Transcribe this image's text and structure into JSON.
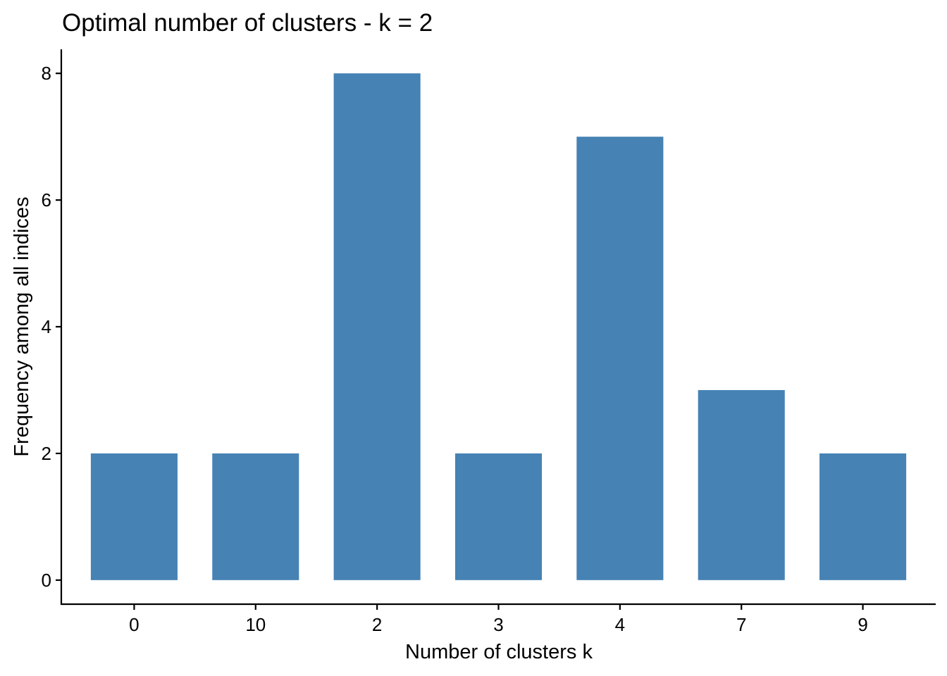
{
  "chart_data": {
    "type": "bar",
    "title": "Optimal number of clusters - k = 2",
    "xlabel": "Number of clusters k",
    "ylabel": "Frequency among all indices",
    "categories": [
      "0",
      "10",
      "2",
      "3",
      "4",
      "7",
      "9"
    ],
    "values": [
      2,
      2,
      8,
      2,
      7,
      3,
      2
    ],
    "yticks": [
      "0",
      "2",
      "4",
      "6",
      "8"
    ],
    "ylim": [
      -0.38,
      8.38
    ],
    "bar_color": "#4682b4",
    "grid": false,
    "legend": "none"
  }
}
